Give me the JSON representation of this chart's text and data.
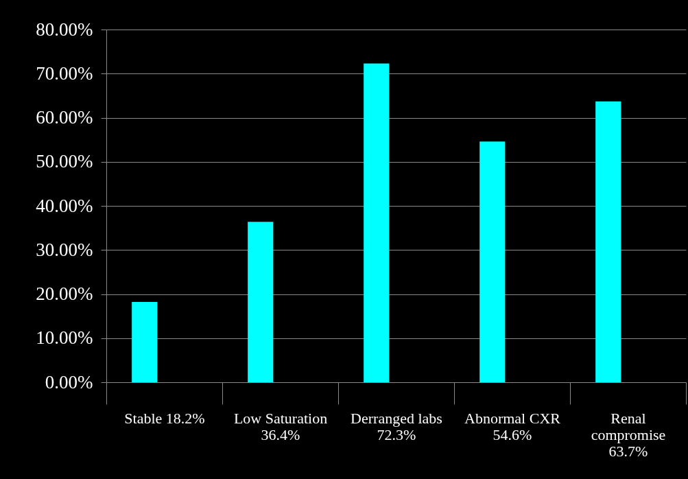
{
  "chart_data": {
    "type": "bar",
    "categories": [
      "Stable 18.2%",
      "Low Saturation 36.4%",
      "Derranged labs 72.3%",
      "Abnormal CXR 54.6%",
      "Renal compromise 63.7%"
    ],
    "values": [
      18.2,
      36.4,
      72.3,
      54.6,
      63.7
    ],
    "color": "#00ffff",
    "ylim": [
      0,
      80
    ],
    "yticks": [
      {
        "value": 0,
        "label": "0.00%"
      },
      {
        "value": 10,
        "label": "10.00%"
      },
      {
        "value": 20,
        "label": "20.00%"
      },
      {
        "value": 30,
        "label": "30.00%"
      },
      {
        "value": 40,
        "label": "40.00%"
      },
      {
        "value": 50,
        "label": "50.00%"
      },
      {
        "value": 60,
        "label": "60.00%"
      },
      {
        "value": 70,
        "label": "70.00%"
      },
      {
        "value": 80,
        "label": "80.00%"
      }
    ],
    "grid": "y"
  }
}
